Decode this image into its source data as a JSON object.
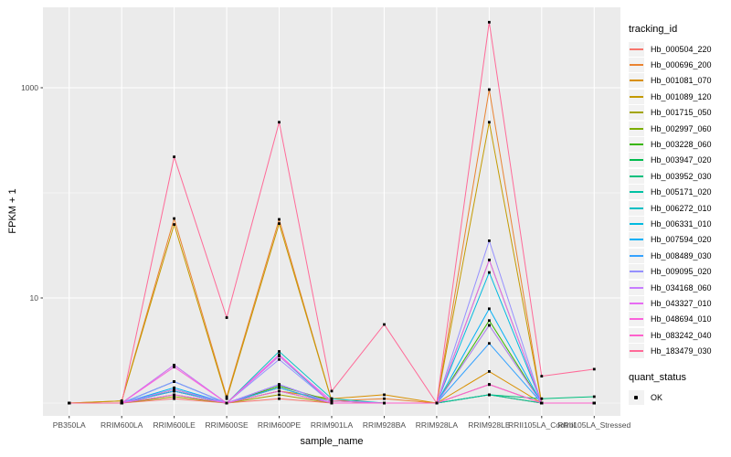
{
  "window": {
    "background": "#FFFFFF"
  },
  "chart_data": {
    "type": "line",
    "title": "",
    "xlabel": "sample_name",
    "ylabel": "FPKM + 1",
    "y_scale": "log10",
    "y_major_ticks": [
      10,
      1000
    ],
    "y_minor_gridlines": [
      1,
      100
    ],
    "ylim": [
      0.75,
      5600
    ],
    "grid": "on",
    "legend_position": "right",
    "panel_background": "#EBEBEB",
    "gridline_color": "#FFFFFF",
    "axis_text_color": "#4D4D4D",
    "point_color": "#000000",
    "legend_title": "tracking_id",
    "point_legend": {
      "title": "quant_status",
      "label": "OK"
    },
    "categories": [
      "PB350LA",
      "RRIM600LA",
      "RRIM600LE",
      "RRIM600SE",
      "RRIM600PE",
      "RRIM901LA",
      "RRIM928BA",
      "RRIM928LA",
      "RRIM928LE",
      "RRII105LA_Control",
      "RRII105LA_Stressed"
    ],
    "series": [
      {
        "name": "Hb_000504_220",
        "color": "#F8766D",
        "values": [
          1,
          1,
          1.1,
          1,
          1.1,
          1,
          1,
          1,
          1.2,
          1,
          1
        ]
      },
      {
        "name": "Hb_000696_200",
        "color": "#EA8331",
        "values": [
          1,
          1.05,
          57,
          1.15,
          56,
          1.05,
          1.1,
          1,
          960,
          1,
          1
        ]
      },
      {
        "name": "Hb_001081_070",
        "color": "#D89000",
        "values": [
          1,
          1,
          1.3,
          1,
          1.3,
          1.1,
          1.2,
          1,
          2,
          1,
          1
        ]
      },
      {
        "name": "Hb_001089_120",
        "color": "#C49A00",
        "values": [
          1,
          1.05,
          50,
          1.1,
          51,
          1.05,
          1,
          1,
          470,
          1,
          1
        ]
      },
      {
        "name": "Hb_001715_050",
        "color": "#A3A500",
        "values": [
          1,
          1,
          1.15,
          1,
          1.2,
          1,
          1,
          1,
          1.2,
          1,
          1
        ]
      },
      {
        "name": "Hb_002997_060",
        "color": "#7CAE00",
        "values": [
          1,
          1,
          1.3,
          1,
          1.4,
          1,
          1,
          1,
          1.5,
          1,
          1
        ]
      },
      {
        "name": "Hb_003228_060",
        "color": "#39B600",
        "values": [
          1,
          1,
          1.35,
          1,
          1.45,
          1.05,
          1,
          1,
          6.1,
          1,
          1
        ]
      },
      {
        "name": "Hb_003947_020",
        "color": "#00BB4E",
        "values": [
          1,
          1,
          1.3,
          1,
          1.4,
          1,
          1,
          1,
          5.5,
          1,
          1
        ]
      },
      {
        "name": "Hb_003952_030",
        "color": "#00BF7D",
        "values": [
          1,
          1,
          1.2,
          1,
          1.3,
          1,
          1,
          1,
          1.2,
          1.1,
          1.15
        ]
      },
      {
        "name": "Hb_005171_020",
        "color": "#00C1A3",
        "values": [
          1,
          1,
          1.6,
          1,
          1.5,
          1,
          1,
          1,
          1.2,
          1,
          1
        ]
      },
      {
        "name": "Hb_006272_010",
        "color": "#00BFC4",
        "values": [
          1,
          1,
          2.3,
          1,
          3.1,
          1.1,
          1,
          1,
          23,
          1,
          1
        ]
      },
      {
        "name": "Hb_006331_010",
        "color": "#00BAE0",
        "values": [
          1,
          1,
          1.6,
          1,
          2.8,
          1,
          1,
          1,
          17.5,
          1,
          1
        ]
      },
      {
        "name": "Hb_007594_020",
        "color": "#00B0F6",
        "values": [
          1,
          1,
          1.4,
          1,
          1.5,
          1,
          1,
          1,
          7.9,
          1,
          1
        ]
      },
      {
        "name": "Hb_008489_030",
        "color": "#35A2FF",
        "values": [
          1,
          1,
          1.3,
          1,
          1.4,
          1,
          1,
          1,
          3.7,
          1,
          1
        ]
      },
      {
        "name": "Hb_009095_020",
        "color": "#9590FF",
        "values": [
          1,
          1,
          1.6,
          1,
          2.6,
          1,
          1,
          1,
          35,
          1,
          1
        ]
      },
      {
        "name": "Hb_034168_060",
        "color": "#C77CFF",
        "values": [
          1,
          1,
          1.35,
          1,
          1.5,
          1,
          1,
          1,
          5.5,
          1,
          1
        ]
      },
      {
        "name": "Hb_043327_010",
        "color": "#E76BF3",
        "values": [
          1,
          1,
          2.3,
          1,
          2.8,
          1.05,
          1,
          1,
          1.5,
          1,
          1
        ]
      },
      {
        "name": "Hb_048694_010",
        "color": "#FA62DB",
        "values": [
          1,
          1,
          2.2,
          1,
          2.9,
          1,
          1,
          1,
          23,
          1,
          1
        ]
      },
      {
        "name": "Hb_083242_040",
        "color": "#FF61CC",
        "values": [
          1,
          1,
          1.2,
          1,
          1.3,
          1,
          1,
          1,
          1.5,
          1,
          1
        ]
      },
      {
        "name": "Hb_183479_030",
        "color": "#FF6A98",
        "values": [
          1,
          1,
          220,
          6.5,
          470,
          1.3,
          5.6,
          1,
          4200,
          1.8,
          2.1
        ]
      }
    ]
  }
}
